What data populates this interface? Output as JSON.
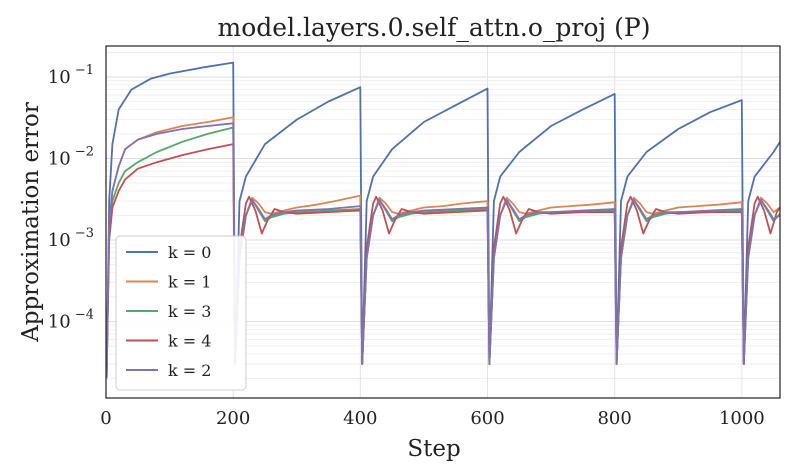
{
  "chart_data": {
    "type": "line",
    "title": "model.layers.0.self_attn.o_proj (P)",
    "xlabel": "Step",
    "ylabel": "Approximation error",
    "x_ticks": [
      "0",
      "200",
      "400",
      "600",
      "800",
      "1000"
    ],
    "y_ticks": [
      {
        "base": "10",
        "exp": "−1",
        "value": 0.1
      },
      {
        "base": "10",
        "exp": "−2",
        "value": 0.01
      },
      {
        "base": "10",
        "exp": "−3",
        "value": 0.001
      },
      {
        "base": "10",
        "exp": "−4",
        "value": 0.0001
      }
    ],
    "xlim": [
      0,
      1060
    ],
    "ylim": [
      1.15e-05,
      0.24
    ],
    "y_scale": "log",
    "grid": true,
    "legend_position": "lower-left",
    "reset_interval": 200,
    "series": [
      {
        "name": "k = 0",
        "color": "#4c72b0",
        "x": [
          1,
          5,
          10,
          20,
          40,
          70,
          100,
          150,
          200,
          203,
          210,
          220,
          250,
          300,
          350,
          400,
          403,
          410,
          420,
          450,
          500,
          550,
          600,
          603,
          610,
          620,
          650,
          700,
          750,
          800,
          803,
          810,
          820,
          850,
          900,
          950,
          1000,
          1003,
          1010,
          1020,
          1050,
          1060
        ],
        "y": [
          2e-05,
          0.003,
          0.015,
          0.04,
          0.07,
          0.095,
          0.11,
          0.13,
          0.15,
          3e-05,
          0.003,
          0.006,
          0.015,
          0.03,
          0.05,
          0.075,
          3e-05,
          0.003,
          0.006,
          0.013,
          0.028,
          0.045,
          0.072,
          3e-05,
          0.003,
          0.006,
          0.012,
          0.025,
          0.04,
          0.062,
          3e-05,
          0.003,
          0.006,
          0.012,
          0.023,
          0.037,
          0.052,
          3e-05,
          0.003,
          0.006,
          0.012,
          0.016
        ]
      },
      {
        "name": "k = 1",
        "color": "#dd8452",
        "x": [
          1,
          5,
          10,
          20,
          30,
          50,
          80,
          120,
          160,
          200,
          203,
          210,
          220,
          230,
          240,
          250,
          260,
          280,
          300,
          330,
          360,
          400,
          403,
          410,
          420,
          430,
          440,
          450,
          460,
          480,
          500,
          530,
          560,
          600,
          603,
          610,
          620,
          630,
          640,
          650,
          660,
          680,
          700,
          730,
          760,
          800,
          803,
          810,
          820,
          830,
          840,
          850,
          860,
          880,
          900,
          930,
          960,
          1000,
          1003,
          1010,
          1020,
          1030,
          1040,
          1050,
          1060
        ],
        "y": [
          2e-05,
          0.0015,
          0.004,
          0.008,
          0.013,
          0.017,
          0.021,
          0.025,
          0.028,
          0.032,
          3e-05,
          0.0006,
          0.002,
          0.0033,
          0.0028,
          0.0022,
          0.0021,
          0.0023,
          0.0025,
          0.0027,
          0.003,
          0.0035,
          3e-05,
          0.0006,
          0.002,
          0.0033,
          0.0028,
          0.0022,
          0.0021,
          0.0023,
          0.0025,
          0.0026,
          0.0028,
          0.003,
          3e-05,
          0.0006,
          0.002,
          0.0033,
          0.0028,
          0.0022,
          0.0021,
          0.0023,
          0.0025,
          0.0026,
          0.0027,
          0.0029,
          3e-05,
          0.0006,
          0.002,
          0.0033,
          0.0028,
          0.0022,
          0.0021,
          0.0023,
          0.0025,
          0.0026,
          0.0027,
          0.0029,
          3e-05,
          0.0006,
          0.002,
          0.0033,
          0.0028,
          0.0022,
          0.0025
        ]
      },
      {
        "name": "k = 3",
        "color": "#55a868",
        "x": [
          1,
          5,
          10,
          20,
          30,
          50,
          80,
          120,
          160,
          200,
          203,
          210,
          220,
          230,
          240,
          250,
          260,
          280,
          300,
          350,
          400,
          403,
          410,
          420,
          430,
          440,
          450,
          460,
          480,
          500,
          550,
          600,
          603,
          610,
          620,
          630,
          640,
          650,
          660,
          680,
          700,
          750,
          800,
          803,
          810,
          820,
          830,
          840,
          850,
          860,
          880,
          900,
          950,
          1000,
          1003,
          1010,
          1020,
          1030,
          1040,
          1050,
          1060
        ],
        "y": [
          2e-05,
          0.0015,
          0.003,
          0.005,
          0.007,
          0.009,
          0.012,
          0.016,
          0.02,
          0.024,
          3e-05,
          0.0006,
          0.002,
          0.0031,
          0.0023,
          0.0017,
          0.0019,
          0.0021,
          0.0022,
          0.0023,
          0.0024,
          3e-05,
          0.0006,
          0.002,
          0.0031,
          0.0023,
          0.0017,
          0.0019,
          0.0021,
          0.0022,
          0.0023,
          0.0024,
          3e-05,
          0.0006,
          0.002,
          0.0031,
          0.0023,
          0.0017,
          0.0019,
          0.0021,
          0.0022,
          0.0022,
          0.0023,
          3e-05,
          0.0006,
          0.002,
          0.0031,
          0.0023,
          0.0017,
          0.0019,
          0.0021,
          0.0022,
          0.0022,
          0.0023,
          3e-05,
          0.0006,
          0.002,
          0.0031,
          0.0023,
          0.0017,
          0.0021
        ]
      },
      {
        "name": "k = 4",
        "color": "#c44e52",
        "x": [
          1,
          5,
          10,
          20,
          30,
          50,
          80,
          120,
          160,
          200,
          203,
          210,
          220,
          225,
          235,
          245,
          255,
          265,
          280,
          300,
          350,
          400,
          403,
          410,
          420,
          425,
          435,
          445,
          455,
          465,
          480,
          500,
          550,
          600,
          603,
          610,
          620,
          625,
          635,
          645,
          655,
          665,
          680,
          700,
          750,
          800,
          803,
          810,
          820,
          825,
          835,
          845,
          855,
          865,
          880,
          900,
          950,
          1000,
          1003,
          1010,
          1020,
          1025,
          1035,
          1045,
          1055,
          1060
        ],
        "y": [
          2e-05,
          0.001,
          0.0025,
          0.004,
          0.0055,
          0.0075,
          0.009,
          0.011,
          0.013,
          0.015,
          3e-05,
          0.0008,
          0.0028,
          0.0034,
          0.0023,
          0.0012,
          0.0018,
          0.0024,
          0.0022,
          0.0021,
          0.0022,
          0.0023,
          3e-05,
          0.0008,
          0.0028,
          0.0034,
          0.0023,
          0.0012,
          0.0018,
          0.0024,
          0.0022,
          0.0021,
          0.0022,
          0.0023,
          3e-05,
          0.0008,
          0.0028,
          0.0034,
          0.0023,
          0.0012,
          0.0018,
          0.0024,
          0.0022,
          0.0021,
          0.0022,
          0.0022,
          3e-05,
          0.0008,
          0.0028,
          0.0034,
          0.0023,
          0.0012,
          0.0018,
          0.0024,
          0.0022,
          0.0021,
          0.0022,
          0.0022,
          3e-05,
          0.0008,
          0.0028,
          0.0034,
          0.0023,
          0.0012,
          0.0022,
          0.0025
        ]
      },
      {
        "name": "k = 2",
        "color": "#8172b3",
        "x": [
          1,
          5,
          10,
          20,
          30,
          50,
          80,
          120,
          160,
          200,
          203,
          210,
          220,
          230,
          240,
          250,
          260,
          280,
          300,
          350,
          400,
          403,
          410,
          420,
          430,
          440,
          450,
          460,
          480,
          500,
          550,
          600,
          603,
          610,
          620,
          630,
          640,
          650,
          660,
          680,
          700,
          750,
          800,
          803,
          810,
          820,
          830,
          840,
          850,
          860,
          880,
          900,
          950,
          1000,
          1003,
          1010,
          1020,
          1030,
          1040,
          1050,
          1060
        ],
        "y": [
          2e-05,
          0.0015,
          0.004,
          0.008,
          0.013,
          0.017,
          0.02,
          0.023,
          0.025,
          0.027,
          3e-05,
          0.0006,
          0.002,
          0.0031,
          0.0024,
          0.0018,
          0.002,
          0.0022,
          0.0023,
          0.0024,
          0.0026,
          3e-05,
          0.0006,
          0.002,
          0.0031,
          0.0024,
          0.0018,
          0.002,
          0.0022,
          0.0023,
          0.0024,
          0.0025,
          3e-05,
          0.0006,
          0.002,
          0.0031,
          0.0024,
          0.0018,
          0.002,
          0.0022,
          0.0022,
          0.0023,
          0.0024,
          3e-05,
          0.0006,
          0.002,
          0.0031,
          0.0024,
          0.0018,
          0.002,
          0.0022,
          0.0022,
          0.0023,
          0.0024,
          3e-05,
          0.0006,
          0.002,
          0.0031,
          0.0024,
          0.0018,
          0.002
        ]
      }
    ]
  }
}
